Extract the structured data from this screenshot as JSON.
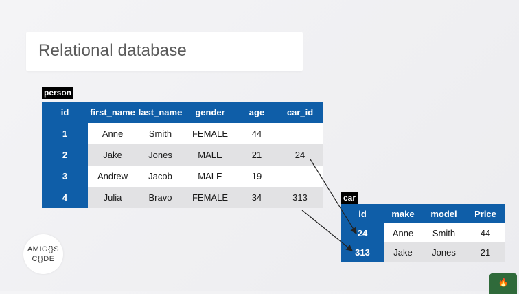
{
  "slide": {
    "title": "Relational database"
  },
  "person_table": {
    "label": "person",
    "columns": [
      "id",
      "first_name",
      "last_name",
      "gender",
      "age",
      "car_id"
    ],
    "rows": [
      [
        "1",
        "Anne",
        "Smith",
        "FEMALE",
        "44",
        ""
      ],
      [
        "2",
        "Jake",
        "Jones",
        "MALE",
        "21",
        "24"
      ],
      [
        "3",
        "Andrew",
        "Jacob",
        "MALE",
        "19",
        ""
      ],
      [
        "4",
        "Julia",
        "Bravo",
        "FEMALE",
        "34",
        "313"
      ]
    ]
  },
  "car_table": {
    "label": "car",
    "columns": [
      "id",
      "make",
      "model",
      "Price"
    ],
    "rows": [
      [
        "24",
        "Anne",
        "Smith",
        "44"
      ],
      [
        "313",
        "Jake",
        "Jones",
        "21"
      ]
    ]
  },
  "logo": {
    "line1": "AMIG{}S",
    "line2": "C{}DE"
  },
  "corner_icon": "campfire-icon",
  "colors": {
    "header_blue": "#0f5ea8",
    "row_gray": "#e2e2e4"
  }
}
